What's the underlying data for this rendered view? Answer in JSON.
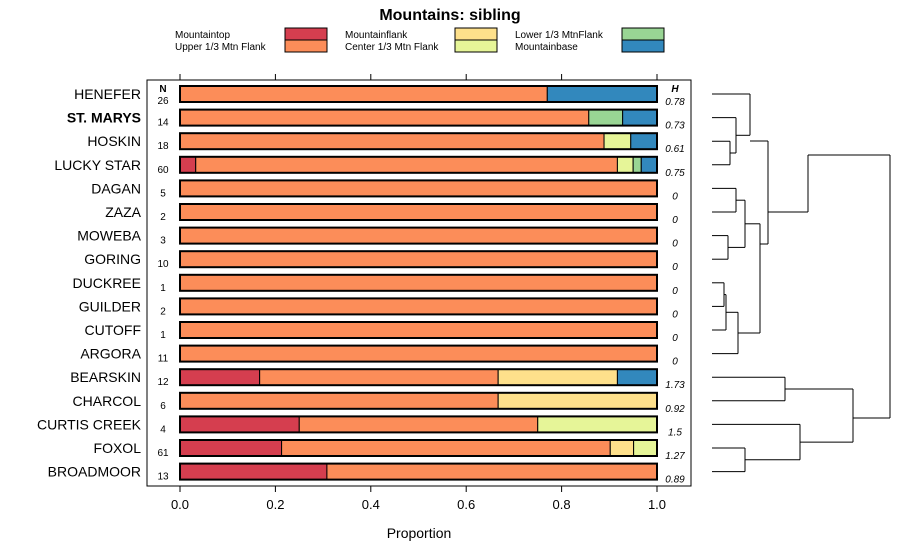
{
  "chart_data": {
    "type": "bar",
    "orientation": "horizontal",
    "stacked": true,
    "title": "Mountains: sibling",
    "xlabel": "Proportion",
    "xlim": [
      0,
      1
    ],
    "xticks": [
      "0.0",
      "0.2",
      "0.4",
      "0.6",
      "0.8",
      "1.0"
    ],
    "xtick_values": [
      0,
      0.2,
      0.4,
      0.6,
      0.8,
      1.0
    ],
    "n_header": "N",
    "h_header": "H",
    "categories": [
      "Mountaintop",
      "Upper 1/3 Mtn Flank",
      "Mountainflank",
      "Center 1/3 Mtn Flank",
      "Lower 1/3 MtnFlank",
      "Mountainbase"
    ],
    "colors": [
      "#d53e4f",
      "#fc8d59",
      "#fee08b",
      "#e6f598",
      "#99d594",
      "#3288bd"
    ],
    "rows": [
      {
        "name": "HENEFER",
        "bold": false,
        "n": "26",
        "h": "0.78",
        "values": [
          0,
          0.77,
          0,
          0,
          0,
          0.23
        ]
      },
      {
        "name": "ST. MARYS",
        "bold": true,
        "n": "14",
        "h": "0.73",
        "values": [
          0,
          0.857,
          0,
          0,
          0.071,
          0.072
        ]
      },
      {
        "name": "HOSKIN",
        "bold": false,
        "n": "18",
        "h": "0.61",
        "values": [
          0,
          0.889,
          0,
          0.056,
          0,
          0.055
        ]
      },
      {
        "name": "LUCKY STAR",
        "bold": false,
        "n": "60",
        "h": "0.75",
        "values": [
          0.033,
          0.884,
          0,
          0.033,
          0.017,
          0.033
        ]
      },
      {
        "name": "DAGAN",
        "bold": false,
        "n": "5",
        "h": "0",
        "values": [
          0,
          1,
          0,
          0,
          0,
          0
        ]
      },
      {
        "name": "ZAZA",
        "bold": false,
        "n": "2",
        "h": "0",
        "values": [
          0,
          1,
          0,
          0,
          0,
          0
        ]
      },
      {
        "name": "MOWEBA",
        "bold": false,
        "n": "3",
        "h": "0",
        "values": [
          0,
          1,
          0,
          0,
          0,
          0
        ]
      },
      {
        "name": "GORING",
        "bold": false,
        "n": "10",
        "h": "0",
        "values": [
          0,
          1,
          0,
          0,
          0,
          0
        ]
      },
      {
        "name": "DUCKREE",
        "bold": false,
        "n": "1",
        "h": "0",
        "values": [
          0,
          1,
          0,
          0,
          0,
          0
        ]
      },
      {
        "name": "GUILDER",
        "bold": false,
        "n": "2",
        "h": "0",
        "values": [
          0,
          1,
          0,
          0,
          0,
          0
        ]
      },
      {
        "name": "CUTOFF",
        "bold": false,
        "n": "1",
        "h": "0",
        "values": [
          0,
          1,
          0,
          0,
          0,
          0
        ]
      },
      {
        "name": "ARGORA",
        "bold": false,
        "n": "11",
        "h": "0",
        "values": [
          0,
          1,
          0,
          0,
          0,
          0
        ]
      },
      {
        "name": "BEARSKIN",
        "bold": false,
        "n": "12",
        "h": "1.73",
        "values": [
          0.167,
          0.5,
          0.25,
          0,
          0,
          0.083
        ]
      },
      {
        "name": "CHARCOL",
        "bold": false,
        "n": "6",
        "h": "0.92",
        "values": [
          0,
          0.667,
          0.333,
          0,
          0,
          0
        ]
      },
      {
        "name": "CURTIS CREEK",
        "bold": false,
        "n": "4",
        "h": "1.5",
        "values": [
          0.25,
          0.5,
          0,
          0.25,
          0,
          0
        ]
      },
      {
        "name": "FOXOL",
        "bold": false,
        "n": "61",
        "h": "1.27",
        "values": [
          0.213,
          0.689,
          0.049,
          0.049,
          0,
          0
        ]
      },
      {
        "name": "BROADMOOR",
        "bold": false,
        "n": "13",
        "h": "0.89",
        "values": [
          0.308,
          0.692,
          0,
          0,
          0,
          0
        ]
      }
    ]
  }
}
